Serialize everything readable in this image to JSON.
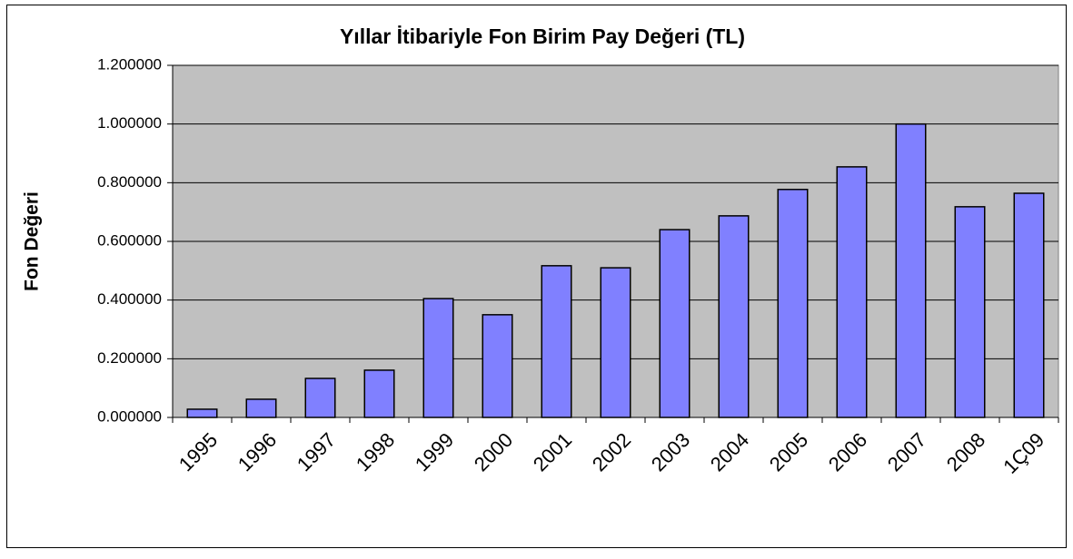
{
  "chart_data": {
    "type": "bar",
    "title": "Yıllar İtibariyle Fon Birim Pay Değeri (TL)",
    "y_label": "Fon Değeri",
    "categories": [
      "1995",
      "1996",
      "1997",
      "1998",
      "1999",
      "2000",
      "2001",
      "2002",
      "2003",
      "2004",
      "2005",
      "2006",
      "2007",
      "2008",
      "1Ç09"
    ],
    "values": [
      0.028,
      0.062,
      0.133,
      0.161,
      0.405,
      0.35,
      0.517,
      0.51,
      0.64,
      0.687,
      0.777,
      0.854,
      1.0,
      0.718,
      0.764
    ],
    "color": "#8080ff",
    "ylim": [
      0,
      1.2
    ],
    "yticks": [
      {
        "value": 0,
        "label": "0.000000"
      },
      {
        "value": 0.2,
        "label": "0.200000"
      },
      {
        "value": 0.4,
        "label": "0.400000"
      },
      {
        "value": 0.6,
        "label": "0.600000"
      },
      {
        "value": 0.8,
        "label": "0.800000"
      },
      {
        "value": 1.0,
        "label": "1.000000"
      },
      {
        "value": 1.2,
        "label": "1.200000"
      }
    ],
    "grid": true
  }
}
